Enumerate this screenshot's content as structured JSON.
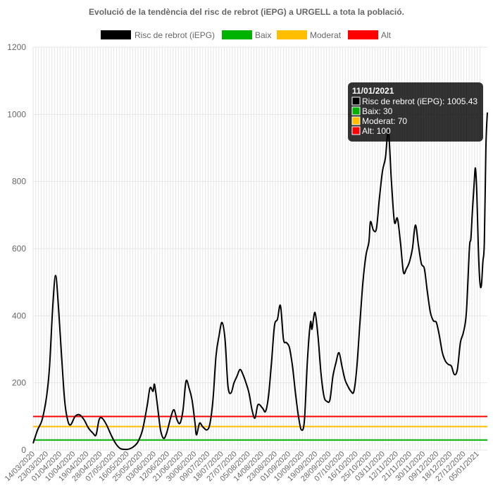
{
  "chart_data": {
    "type": "line",
    "title": "Evolució de la tendència del risc de rebrot (iEPG) a URGELL a tota la població.",
    "legend": {
      "position": "top"
    },
    "ylim": [
      0,
      1200
    ],
    "yticks": [
      0,
      200,
      400,
      600,
      800,
      1000,
      1200
    ],
    "grid": true,
    "x_tick_labels": [
      "14/03/2020",
      "23/03/2020",
      "01/04/2020",
      "10/04/2020",
      "19/04/2020",
      "28/04/2020",
      "07/05/2020",
      "16/05/2020",
      "25/05/2020",
      "03/06/2020",
      "12/06/2020",
      "21/06/2020",
      "30/06/2020",
      "09/07/2020",
      "18/07/2020",
      "27/07/2020",
      "05/08/2020",
      "14/08/2020",
      "23/08/2020",
      "01/09/2020",
      "10/09/2020",
      "19/09/2020",
      "28/09/2020",
      "07/10/2020",
      "16/10/2020",
      "25/10/2020",
      "03/11/2020",
      "12/11/2020",
      "21/11/2020",
      "30/11/2020",
      "09/12/2020",
      "18/12/2020",
      "27/12/2020",
      "05/01/2021"
    ],
    "series": [
      {
        "name": "Risc de rebrot (iEPG)",
        "color": "#000000",
        "points": [
          [
            "14/03/2020",
            20
          ],
          [
            "17/03/2020",
            60
          ],
          [
            "20/03/2020",
            90
          ],
          [
            "23/03/2020",
            160
          ],
          [
            "25/03/2020",
            250
          ],
          [
            "27/03/2020",
            420
          ],
          [
            "29/03/2020",
            520
          ],
          [
            "31/03/2020",
            420
          ],
          [
            "02/04/2020",
            280
          ],
          [
            "04/04/2020",
            150
          ],
          [
            "06/04/2020",
            90
          ],
          [
            "08/04/2020",
            75
          ],
          [
            "11/04/2020",
            100
          ],
          [
            "14/04/2020",
            105
          ],
          [
            "17/04/2020",
            90
          ],
          [
            "20/04/2020",
            65
          ],
          [
            "23/04/2020",
            50
          ],
          [
            "25/04/2020",
            45
          ],
          [
            "27/04/2020",
            90
          ],
          [
            "29/04/2020",
            95
          ],
          [
            "02/05/2020",
            75
          ],
          [
            "05/05/2020",
            45
          ],
          [
            "08/05/2020",
            20
          ],
          [
            "11/05/2020",
            5
          ],
          [
            "14/05/2020",
            2
          ],
          [
            "17/05/2020",
            3
          ],
          [
            "20/05/2020",
            10
          ],
          [
            "23/05/2020",
            25
          ],
          [
            "26/05/2020",
            60
          ],
          [
            "29/05/2020",
            130
          ],
          [
            "31/05/2020",
            185
          ],
          [
            "02/06/2020",
            175
          ],
          [
            "03/06/2020",
            195
          ],
          [
            "05/06/2020",
            130
          ],
          [
            "07/06/2020",
            60
          ],
          [
            "09/06/2020",
            35
          ],
          [
            "11/06/2020",
            50
          ],
          [
            "14/06/2020",
            100
          ],
          [
            "16/06/2020",
            120
          ],
          [
            "18/06/2020",
            90
          ],
          [
            "20/06/2020",
            80
          ],
          [
            "22/06/2020",
            120
          ],
          [
            "24/06/2020",
            205
          ],
          [
            "26/06/2020",
            185
          ],
          [
            "28/06/2020",
            150
          ],
          [
            "30/06/2020",
            80
          ],
          [
            "01/07/2020",
            45
          ],
          [
            "03/07/2020",
            80
          ],
          [
            "05/07/2020",
            70
          ],
          [
            "08/07/2020",
            60
          ],
          [
            "10/07/2020",
            80
          ],
          [
            "12/07/2020",
            150
          ],
          [
            "14/07/2020",
            280
          ],
          [
            "16/07/2020",
            340
          ],
          [
            "18/07/2020",
            380
          ],
          [
            "20/07/2020",
            330
          ],
          [
            "22/07/2020",
            190
          ],
          [
            "24/07/2020",
            170
          ],
          [
            "26/07/2020",
            200
          ],
          [
            "28/07/2020",
            220
          ],
          [
            "30/07/2020",
            240
          ],
          [
            "01/08/2020",
            225
          ],
          [
            "03/08/2020",
            200
          ],
          [
            "05/08/2020",
            170
          ],
          [
            "07/08/2020",
            120
          ],
          [
            "09/08/2020",
            95
          ],
          [
            "11/08/2020",
            135
          ],
          [
            "14/08/2020",
            125
          ],
          [
            "16/08/2020",
            115
          ],
          [
            "18/08/2020",
            160
          ],
          [
            "20/08/2020",
            260
          ],
          [
            "22/08/2020",
            370
          ],
          [
            "24/08/2020",
            390
          ],
          [
            "26/08/2020",
            430
          ],
          [
            "28/08/2020",
            330
          ],
          [
            "30/08/2020",
            320
          ],
          [
            "01/09/2020",
            305
          ],
          [
            "03/09/2020",
            250
          ],
          [
            "05/09/2020",
            170
          ],
          [
            "07/09/2020",
            100
          ],
          [
            "09/09/2020",
            60
          ],
          [
            "11/09/2020",
            90
          ],
          [
            "13/09/2020",
            270
          ],
          [
            "15/09/2020",
            380
          ],
          [
            "16/09/2020",
            360
          ],
          [
            "18/09/2020",
            410
          ],
          [
            "20/09/2020",
            340
          ],
          [
            "22/09/2020",
            230
          ],
          [
            "24/09/2020",
            160
          ],
          [
            "26/09/2020",
            145
          ],
          [
            "28/09/2020",
            150
          ],
          [
            "30/09/2020",
            220
          ],
          [
            "02/10/2020",
            260
          ],
          [
            "04/10/2020",
            290
          ],
          [
            "06/10/2020",
            250
          ],
          [
            "08/10/2020",
            210
          ],
          [
            "10/10/2020",
            190
          ],
          [
            "12/10/2020",
            175
          ],
          [
            "14/10/2020",
            175
          ],
          [
            "16/10/2020",
            250
          ],
          [
            "18/10/2020",
            380
          ],
          [
            "20/10/2020",
            500
          ],
          [
            "22/10/2020",
            580
          ],
          [
            "24/10/2020",
            620
          ],
          [
            "25/10/2020",
            680
          ],
          [
            "27/10/2020",
            655
          ],
          [
            "29/10/2020",
            660
          ],
          [
            "31/10/2020",
            750
          ],
          [
            "02/11/2020",
            830
          ],
          [
            "04/11/2020",
            870
          ],
          [
            "06/11/2020",
            950
          ],
          [
            "08/11/2020",
            800
          ],
          [
            "10/11/2020",
            680
          ],
          [
            "12/11/2020",
            690
          ],
          [
            "14/11/2020",
            620
          ],
          [
            "16/11/2020",
            530
          ],
          [
            "18/11/2020",
            540
          ],
          [
            "20/11/2020",
            560
          ],
          [
            "22/11/2020",
            600
          ],
          [
            "24/11/2020",
            670
          ],
          [
            "26/11/2020",
            610
          ],
          [
            "28/11/2020",
            555
          ],
          [
            "30/11/2020",
            540
          ],
          [
            "02/12/2020",
            470
          ],
          [
            "04/12/2020",
            410
          ],
          [
            "06/12/2020",
            385
          ],
          [
            "08/12/2020",
            380
          ],
          [
            "10/12/2020",
            340
          ],
          [
            "12/12/2020",
            290
          ],
          [
            "14/12/2020",
            265
          ],
          [
            "16/12/2020",
            255
          ],
          [
            "18/12/2020",
            250
          ],
          [
            "20/12/2020",
            225
          ],
          [
            "22/12/2020",
            240
          ],
          [
            "24/12/2020",
            320
          ],
          [
            "26/12/2020",
            350
          ],
          [
            "28/12/2020",
            410
          ],
          [
            "30/12/2020",
            600
          ],
          [
            "31/12/2020",
            630
          ],
          [
            "01/01/2021",
            710
          ],
          [
            "02/01/2021",
            780
          ],
          [
            "03/01/2021",
            840
          ],
          [
            "04/01/2021",
            760
          ],
          [
            "05/01/2021",
            600
          ],
          [
            "06/01/2021",
            500
          ],
          [
            "07/01/2021",
            490
          ],
          [
            "08/01/2021",
            560
          ],
          [
            "09/01/2021",
            620
          ],
          [
            "10/01/2021",
            900
          ],
          [
            "11/01/2021",
            1005.43
          ]
        ]
      },
      {
        "name": "Baix",
        "color": "#00b200",
        "value": 30
      },
      {
        "name": "Moderat",
        "color": "#ffbf00",
        "value": 70
      },
      {
        "name": "Alt",
        "color": "#ff0000",
        "value": 100
      }
    ],
    "tooltip": {
      "title": "11/01/2021",
      "lines": [
        {
          "color": "#000000",
          "text": "Risc de rebrot (iEPG): 1005.43"
        },
        {
          "color": "#00b200",
          "text": "Baix: 30"
        },
        {
          "color": "#ffbf00",
          "text": "Moderat: 70"
        },
        {
          "color": "#ff0000",
          "text": "Alt: 100"
        }
      ]
    }
  }
}
